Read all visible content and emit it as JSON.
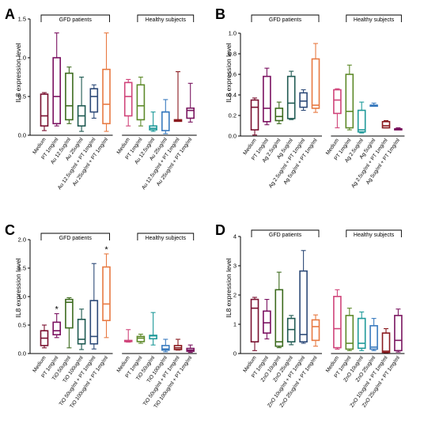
{
  "chart_data": [
    {
      "panel": "A",
      "type": "box",
      "ylabel": "IL8 expression level",
      "ylim": [
        0,
        1.5
      ],
      "yticks": [
        "0.0",
        "0.5",
        "1.0",
        "1.5"
      ],
      "groups": [
        {
          "label": "GFD patients",
          "from": 0,
          "to": 6
        },
        {
          "label": "Healthy subjects",
          "from": 7,
          "to": 12
        }
      ],
      "categories": [
        "Medium",
        "PT 1mg/ml",
        "Au 12.5ug/ml",
        "Au 25ug/ml",
        "Au 12.5ug/ml + PT 1mg/ml",
        "Au 25ug/ml + PT 1mg/ml",
        "Medium",
        "PT 1mg/ml",
        "Au 12.5ug/ml",
        "Au 25ug/ml",
        "Au 12.5ug/ml + PT 1mg/ml",
        "Au 25ug/ml + PT 1mg/ml"
      ],
      "colors": [
        "#7a1030",
        "#7a1060",
        "#3d6b1e",
        "#1f5a52",
        "#2d4a78",
        "#e87a42",
        "#d0447a",
        "#5e8a2a",
        "#1f9a9a",
        "#3a7bbf",
        "#8a1a1e",
        "#7a1660"
      ],
      "boxes": [
        {
          "min": 0.06,
          "q1": 0.12,
          "median": 0.25,
          "q3": 0.53,
          "max": 0.55
        },
        {
          "min": 0.12,
          "q1": 0.15,
          "median": 0.5,
          "q3": 1.0,
          "max": 1.32
        },
        {
          "min": 0.15,
          "q1": 0.2,
          "median": 0.38,
          "q3": 0.8,
          "max": 0.88
        },
        {
          "min": 0.05,
          "q1": 0.12,
          "median": 0.25,
          "q3": 0.38,
          "max": 0.75
        },
        {
          "min": 0.22,
          "q1": 0.3,
          "median": 0.5,
          "q3": 0.6,
          "max": 0.65
        },
        {
          "min": 0.05,
          "q1": 0.15,
          "median": 0.4,
          "q3": 0.85,
          "max": 1.32
        },
        {
          "min": 0.12,
          "q1": 0.25,
          "median": 0.5,
          "q3": 0.68,
          "max": 0.72
        },
        {
          "min": 0.12,
          "q1": 0.2,
          "median": 0.38,
          "q3": 0.65,
          "max": 0.75
        },
        {
          "min": 0.05,
          "q1": 0.07,
          "median": 0.09,
          "q3": 0.12,
          "max": 0.3
        },
        {
          "min": 0.02,
          "q1": 0.06,
          "median": 0.3,
          "q3": 0.3,
          "max": 0.46
        },
        {
          "min": 0.18,
          "q1": 0.18,
          "median": 0.19,
          "q3": 0.2,
          "max": 0.82
        },
        {
          "min": 0.17,
          "q1": 0.22,
          "median": 0.32,
          "q3": 0.35,
          "max": 0.67
        }
      ],
      "stars": []
    },
    {
      "panel": "B",
      "type": "box",
      "ylabel": "IL8 expression level",
      "ylim": [
        0,
        1.0
      ],
      "yticks": [
        "0.0",
        "0.2",
        "0.4",
        "0.6",
        "0.8",
        "1.0"
      ],
      "groups": [
        {
          "label": "GFD patients",
          "from": 0,
          "to": 6
        },
        {
          "label": "Healthy subjects",
          "from": 7,
          "to": 12
        }
      ],
      "categories": [
        "Medium",
        "PT 1mg/ml",
        "Ag 2.5ug/ml",
        "Ag 5ug/ml",
        "Ag 2.5ug/ml + PT 1mg/ml",
        "Ag 5ug/ml + PT 1mg/ml",
        "Medium",
        "PT 1mg/ml",
        "Ag 2.5ug/ml",
        "Ag 5ug/ml",
        "Ag 2.5ug/ml + PT 1mg/ml",
        "Ag 5ug/ml + PT 1mg/ml"
      ],
      "colors": [
        "#7a1030",
        "#7a1060",
        "#3d6b1e",
        "#1f5a52",
        "#2d4a78",
        "#e87a42",
        "#d0447a",
        "#5e8a2a",
        "#1f9a9a",
        "#3a7bbf",
        "#8a1a1e",
        "#7a1660"
      ],
      "boxes": [
        {
          "min": 0.01,
          "q1": 0.06,
          "median": 0.28,
          "q3": 0.35,
          "max": 0.37
        },
        {
          "min": 0.11,
          "q1": 0.14,
          "median": 0.27,
          "q3": 0.58,
          "max": 0.66
        },
        {
          "min": 0.12,
          "q1": 0.15,
          "median": 0.19,
          "q3": 0.27,
          "max": 0.33
        },
        {
          "min": 0.16,
          "q1": 0.17,
          "median": 0.32,
          "q3": 0.58,
          "max": 0.63
        },
        {
          "min": 0.25,
          "q1": 0.28,
          "median": 0.34,
          "q3": 0.42,
          "max": 0.45
        },
        {
          "min": 0.23,
          "q1": 0.27,
          "median": 0.3,
          "q3": 0.75,
          "max": 0.9
        },
        {
          "min": 0.08,
          "q1": 0.22,
          "median": 0.35,
          "q3": 0.45,
          "max": 0.46
        },
        {
          "min": 0.06,
          "q1": 0.08,
          "median": 0.24,
          "q3": 0.6,
          "max": 0.69
        },
        {
          "min": 0.03,
          "q1": 0.04,
          "median": 0.06,
          "q3": 0.25,
          "max": 0.33
        },
        {
          "min": 0.29,
          "q1": 0.29,
          "median": 0.3,
          "q3": 0.3,
          "max": 0.32
        },
        {
          "min": 0.08,
          "q1": 0.08,
          "median": 0.1,
          "q3": 0.14,
          "max": 0.15
        },
        {
          "min": 0.06,
          "q1": 0.06,
          "median": 0.07,
          "q3": 0.07,
          "max": 0.08
        }
      ],
      "stars": []
    },
    {
      "panel": "C",
      "type": "box",
      "ylabel": "IL8 expression level",
      "ylim": [
        0,
        2.0
      ],
      "yticks": [
        "0.0",
        "0.5",
        "1.0",
        "1.5",
        "2.0"
      ],
      "groups": [
        {
          "label": "GFD patients",
          "from": 0,
          "to": 6
        },
        {
          "label": "Healthy subjects",
          "from": 7,
          "to": 12
        }
      ],
      "categories": [
        "Medium",
        "PT 1mg/ml",
        "TiO 50ug/ml",
        "TiO 100ug/ml",
        "TiO 50ug/ml + PT 1mg/ml",
        "TiO 100ug/ml + PT 1mg/ml",
        "Medium",
        "PT 1mg/ml",
        "TiO 50ug/ml",
        "TiO 100ug/ml",
        "TiO 50ug/ml + PT 1mg/ml",
        "TiO 100ug/ml + PT 1mg/ml"
      ],
      "colors": [
        "#7a1030",
        "#7a1060",
        "#3d6b1e",
        "#1f5a52",
        "#2d4a78",
        "#e87a42",
        "#d0447a",
        "#5e8a2a",
        "#1f9a9a",
        "#3a7bbf",
        "#8a1a1e",
        "#7a1660"
      ],
      "boxes": [
        {
          "min": 0.1,
          "q1": 0.14,
          "median": 0.27,
          "q3": 0.4,
          "max": 0.5
        },
        {
          "min": 0.28,
          "q1": 0.33,
          "median": 0.4,
          "q3": 0.55,
          "max": 0.7
        },
        {
          "min": 0.1,
          "q1": 0.45,
          "median": 0.9,
          "q3": 0.95,
          "max": 0.98
        },
        {
          "min": 0.07,
          "q1": 0.17,
          "median": 0.25,
          "q3": 0.6,
          "max": 0.78
        },
        {
          "min": 0.08,
          "q1": 0.17,
          "median": 0.3,
          "q3": 0.93,
          "max": 1.58
        },
        {
          "min": 0.28,
          "q1": 0.58,
          "median": 0.87,
          "q3": 1.52,
          "max": 1.75
        },
        {
          "min": 0.2,
          "q1": 0.21,
          "median": 0.22,
          "q3": 0.23,
          "max": 0.42
        },
        {
          "min": 0.18,
          "q1": 0.21,
          "median": 0.27,
          "q3": 0.3,
          "max": 0.34
        },
        {
          "min": 0.15,
          "q1": 0.26,
          "median": 0.31,
          "q3": 0.32,
          "max": 0.72
        },
        {
          "min": 0.03,
          "q1": 0.06,
          "median": 0.08,
          "q3": 0.14,
          "max": 0.25
        },
        {
          "min": 0.06,
          "q1": 0.07,
          "median": 0.1,
          "q3": 0.14,
          "max": 0.25
        },
        {
          "min": 0.02,
          "q1": 0.04,
          "median": 0.06,
          "q3": 0.09,
          "max": 0.15
        }
      ],
      "stars": [
        1,
        5
      ]
    },
    {
      "panel": "D",
      "type": "box",
      "ylabel": "IL8 expression level",
      "ylim": [
        0,
        4
      ],
      "yticks": [
        "0",
        "1",
        "2",
        "3",
        "4"
      ],
      "groups": [
        {
          "label": "GFD patients",
          "from": 0,
          "to": 6
        },
        {
          "label": "Healthy subjects",
          "from": 7,
          "to": 12
        }
      ],
      "categories": [
        "Medium",
        "PT 1mg/ml",
        "ZnO 10ug/ml",
        "ZnO 25ug/ml",
        "ZnO 10ug/ml + PT 1mg/ml",
        "ZnO 25ug/ml + PT 1mg/ml",
        "Medium",
        "PT 1mg/ml",
        "ZnO 10ug/ml",
        "ZnO 25ug/ml",
        "ZnO 10ug/ml + PT 1mg/ml",
        "ZnO 25ug/ml + PT 1mg/ml"
      ],
      "colors": [
        "#7a1030",
        "#7a1060",
        "#3d6b1e",
        "#1f5a52",
        "#2d4a78",
        "#e87a42",
        "#d0447a",
        "#5e8a2a",
        "#1f9a9a",
        "#3a7bbf",
        "#8a1a1e",
        "#7a1660"
      ],
      "boxes": [
        {
          "min": 0.1,
          "q1": 0.4,
          "median": 1.55,
          "q3": 1.85,
          "max": 1.92
        },
        {
          "min": 0.5,
          "q1": 0.7,
          "median": 1.05,
          "q3": 1.45,
          "max": 1.85
        },
        {
          "min": 0.2,
          "q1": 0.25,
          "median": 0.4,
          "q3": 2.18,
          "max": 2.78
        },
        {
          "min": 0.3,
          "q1": 0.4,
          "median": 0.82,
          "q3": 1.2,
          "max": 1.3
        },
        {
          "min": 0.35,
          "q1": 0.4,
          "median": 0.65,
          "q3": 2.82,
          "max": 3.52
        },
        {
          "min": 0.25,
          "q1": 0.45,
          "median": 0.92,
          "q3": 1.15,
          "max": 1.32
        },
        {
          "min": 0.15,
          "q1": 0.2,
          "median": 0.85,
          "q3": 1.95,
          "max": 2.18
        },
        {
          "min": 0.1,
          "q1": 0.15,
          "median": 0.35,
          "q3": 1.3,
          "max": 1.55
        },
        {
          "min": 0.1,
          "q1": 0.18,
          "median": 0.35,
          "q3": 1.2,
          "max": 1.42
        },
        {
          "min": 0.1,
          "q1": 0.15,
          "median": 0.22,
          "q3": 0.95,
          "max": 1.2
        },
        {
          "min": 0.03,
          "q1": 0.04,
          "median": 0.08,
          "q3": 0.7,
          "max": 0.85
        },
        {
          "min": 0.05,
          "q1": 0.1,
          "median": 0.45,
          "q3": 1.3,
          "max": 1.52
        }
      ],
      "stars": []
    }
  ]
}
